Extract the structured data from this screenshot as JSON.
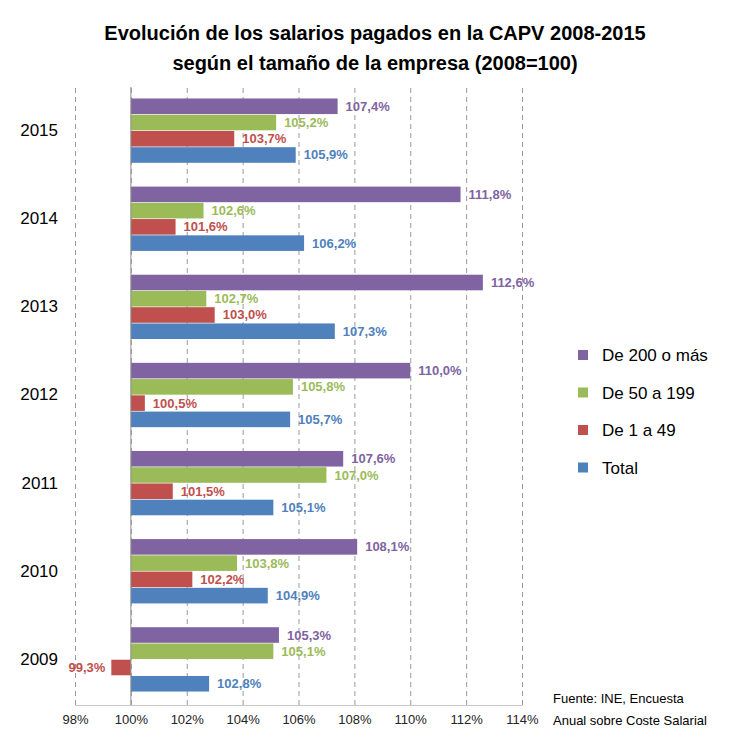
{
  "chart_data": {
    "type": "bar",
    "orientation": "horizontal",
    "title": "Evolución de los salarios pagados en la CAPV 2008-2015",
    "subtitle": "según el tamaño de la empresa (2008=100)",
    "annotations": [
      "Fuente: INE, Encuesta",
      "Anual sobre Coste Salarial"
    ],
    "categories": [
      "2015",
      "2014",
      "2013",
      "2012",
      "2011",
      "2010",
      "2009"
    ],
    "baseline": 100,
    "series": [
      {
        "name": "De 200 o más",
        "color": "#8064A2",
        "values": [
          107.4,
          111.8,
          112.6,
          110.0,
          107.6,
          108.1,
          105.3
        ],
        "value_labels": [
          "107,4%",
          "111,8%",
          "112,6%",
          "110,0%",
          "107,6%",
          "108,1%",
          "105,3%"
        ]
      },
      {
        "name": "De 50 a 199",
        "color": "#9BBB59",
        "values": [
          105.2,
          102.6,
          102.7,
          105.8,
          107.0,
          103.8,
          105.1
        ],
        "value_labels": [
          "105,2%",
          "102,6%",
          "102,7%",
          "105,8%",
          "107,0%",
          "103,8%",
          "105,1%"
        ]
      },
      {
        "name": "De 1 a 49",
        "color": "#C0504D",
        "values": [
          103.7,
          101.6,
          103.0,
          100.5,
          101.5,
          102.2,
          99.3
        ],
        "value_labels": [
          "103,7%",
          "101,6%",
          "103,0%",
          "100,5%",
          "101,5%",
          "102,2%",
          "99,3%"
        ]
      },
      {
        "name": "Total",
        "color": "#4F81BD",
        "values": [
          105.9,
          106.2,
          107.3,
          105.7,
          105.1,
          104.9,
          102.8
        ],
        "value_labels": [
          "105,9%",
          "106,2%",
          "107,3%",
          "105,7%",
          "105,1%",
          "104,9%",
          "102,8%"
        ]
      }
    ],
    "xlim": [
      98,
      114
    ],
    "xticks": [
      {
        "value": 98,
        "label": "98%"
      },
      {
        "value": 100,
        "label": "100%"
      },
      {
        "value": 102,
        "label": "102%"
      },
      {
        "value": 104,
        "label": "104%"
      },
      {
        "value": 106,
        "label": "106%"
      },
      {
        "value": 108,
        "label": "108%"
      },
      {
        "value": 110,
        "label": "110%"
      },
      {
        "value": 112,
        "label": "112%"
      },
      {
        "value": 114,
        "label": "114%"
      }
    ],
    "grid": true,
    "legend": "right",
    "data_labels": true
  }
}
